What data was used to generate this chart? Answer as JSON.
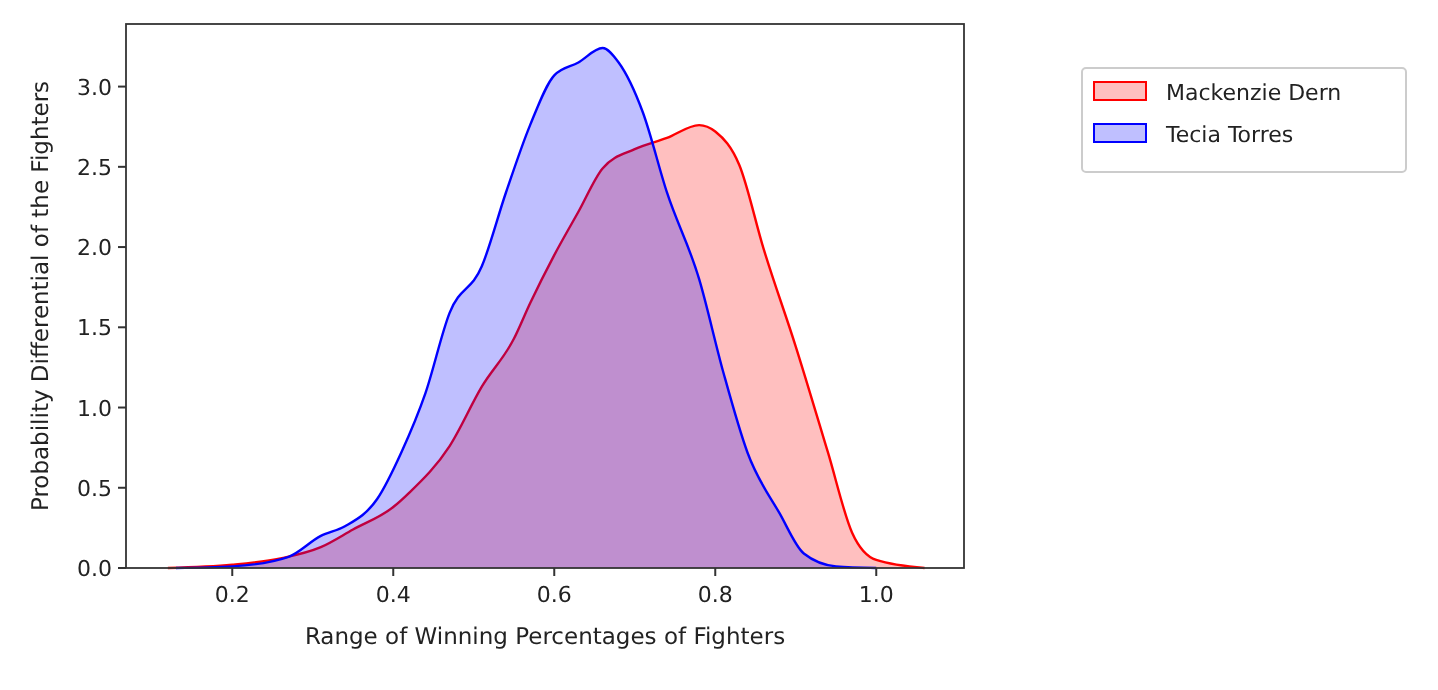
{
  "chart_data": {
    "type": "area",
    "xlabel": "Range of Winning Percentages of Fighters",
    "ylabel": "Probability Differential of the Fighters",
    "xlim": [
      0.068,
      1.109
    ],
    "ylim": [
      0,
      3.39
    ],
    "xticks": [
      0.2,
      0.4,
      0.6,
      0.8,
      {
        "value": 1,
        "label": "1.0"
      }
    ],
    "yticks": [
      {
        "value": 0,
        "label": "0.0"
      },
      0.5,
      {
        "value": 1,
        "label": "1.0"
      },
      1.5,
      {
        "value": 2,
        "label": "2.0"
      },
      2.5,
      {
        "value": 3,
        "label": "3.0"
      }
    ],
    "legend": "right",
    "grid": false,
    "series": [
      {
        "name": "Mackenzie Dern",
        "color": "#ff0000",
        "x": [
          0.12,
          0.2,
          0.26,
          0.31,
          0.35,
          0.4,
          0.42,
          0.47,
          0.51,
          0.55,
          0.57,
          0.6,
          0.63,
          0.66,
          0.7,
          0.74,
          0.78,
          0.8,
          0.83,
          0.86,
          0.9,
          0.94,
          0.97,
          1.0,
          1.06
        ],
        "values": [
          0,
          0.02,
          0.06,
          0.13,
          0.24,
          0.38,
          0.47,
          0.76,
          1.13,
          1.43,
          1.65,
          1.95,
          2.22,
          2.49,
          2.61,
          2.68,
          2.76,
          2.72,
          2.51,
          1.99,
          1.38,
          0.72,
          0.22,
          0.05,
          0
        ]
      },
      {
        "name": "Tecia Torres",
        "color": "#0000ff",
        "x": [
          0.13,
          0.2,
          0.27,
          0.31,
          0.34,
          0.38,
          0.41,
          0.44,
          0.47,
          0.51,
          0.54,
          0.57,
          0.6,
          0.63,
          0.66,
          0.68,
          0.71,
          0.74,
          0.78,
          0.81,
          0.84,
          0.88,
          0.91,
          0.95,
          1.0
        ],
        "values": [
          0,
          0.01,
          0.07,
          0.2,
          0.26,
          0.43,
          0.72,
          1.09,
          1.59,
          1.88,
          2.34,
          2.76,
          3.07,
          3.15,
          3.24,
          3.15,
          2.84,
          2.34,
          1.8,
          1.22,
          0.72,
          0.34,
          0.09,
          0.01,
          0
        ]
      }
    ]
  }
}
